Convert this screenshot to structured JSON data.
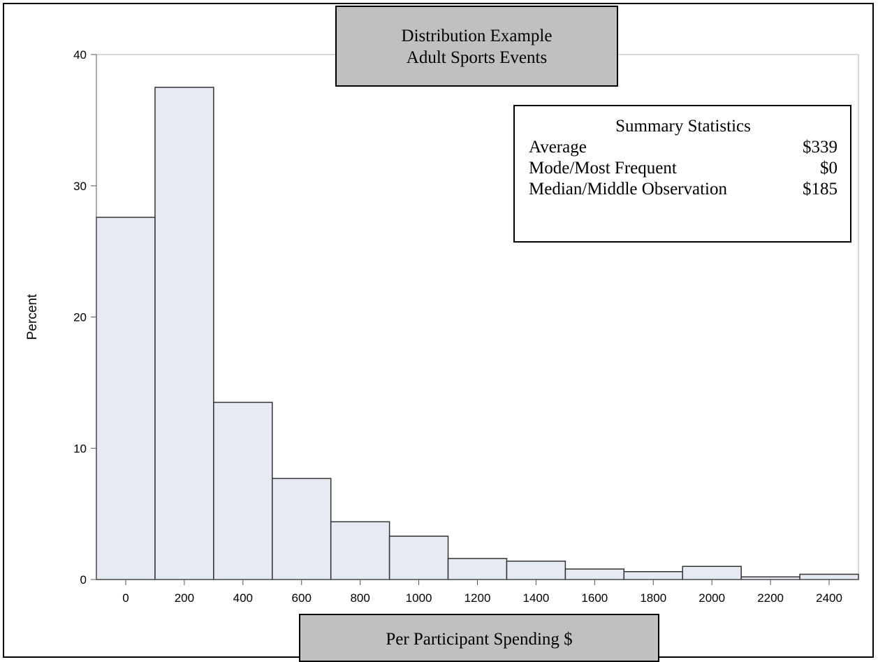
{
  "chart_data": {
    "type": "bar",
    "title_lines": [
      "Distribution Example",
      "Adult Sports Events"
    ],
    "xlabel": "Per Participant Spending $",
    "ylabel": "Percent",
    "bin_width": 200,
    "xlim": [
      -100,
      2500
    ],
    "ylim": [
      0,
      40
    ],
    "yticks": [
      0,
      10,
      20,
      30,
      40
    ],
    "xticks": [
      0,
      200,
      400,
      600,
      800,
      1000,
      1200,
      1400,
      1600,
      1800,
      2000,
      2200,
      2400
    ],
    "bins": [
      {
        "midpoint": 0,
        "value": 27.6
      },
      {
        "midpoint": 200,
        "value": 37.5
      },
      {
        "midpoint": 400,
        "value": 13.5
      },
      {
        "midpoint": 600,
        "value": 7.7
      },
      {
        "midpoint": 800,
        "value": 4.4
      },
      {
        "midpoint": 1000,
        "value": 3.3
      },
      {
        "midpoint": 1200,
        "value": 1.6
      },
      {
        "midpoint": 1400,
        "value": 1.4
      },
      {
        "midpoint": 1600,
        "value": 0.8
      },
      {
        "midpoint": 1800,
        "value": 0.6
      },
      {
        "midpoint": 2000,
        "value": 1.0
      },
      {
        "midpoint": 2200,
        "value": 0.2
      },
      {
        "midpoint": 2400,
        "value": 0.4
      }
    ],
    "bar_color": "#e6eaf3",
    "bar_edge_color": "#333333",
    "grid": false
  },
  "summary": {
    "title": "Summary Statistics",
    "rows": [
      {
        "label": "Average",
        "value": "$339"
      },
      {
        "label": "Mode/Most Frequent",
        "value": "$0"
      },
      {
        "label": "Median/Middle Observation",
        "value": "$185"
      }
    ]
  }
}
